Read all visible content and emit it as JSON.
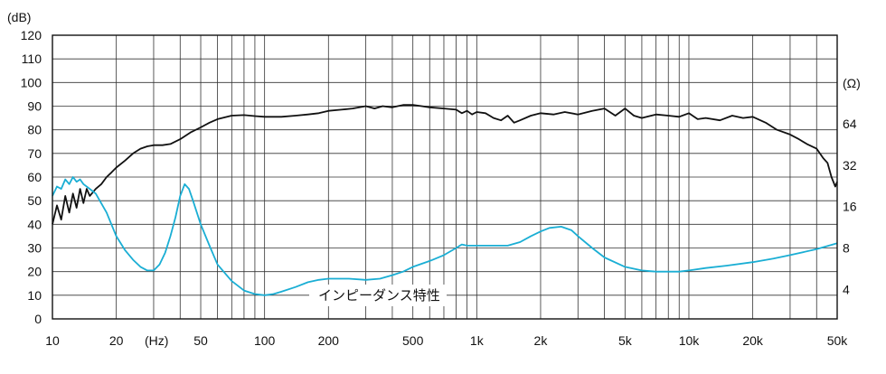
{
  "chart_data": {
    "type": "line",
    "title": "",
    "xscale": "log",
    "xlim": [
      10,
      50000
    ],
    "ylim": [
      0,
      120
    ],
    "ylabel": "(dB)",
    "xunit_label": "(Hz)",
    "y2label": "(Ω)",
    "x_ticks": [
      {
        "value": 10,
        "label": "10"
      },
      {
        "value": 20,
        "label": "20"
      },
      {
        "value": 50,
        "label": "50"
      },
      {
        "value": 100,
        "label": "100"
      },
      {
        "value": 200,
        "label": "200"
      },
      {
        "value": 500,
        "label": "500"
      },
      {
        "value": 1000,
        "label": "1k"
      },
      {
        "value": 2000,
        "label": "2k"
      },
      {
        "value": 5000,
        "label": "5k"
      },
      {
        "value": 10000,
        "label": "10k"
      },
      {
        "value": 20000,
        "label": "20k"
      },
      {
        "value": 50000,
        "label": "50k"
      }
    ],
    "y_ticks": [
      0,
      10,
      20,
      30,
      40,
      50,
      60,
      70,
      80,
      90,
      100,
      110,
      120
    ],
    "y2_ticks": [
      {
        "value": 4,
        "label": "4",
        "at_db": 12.5
      },
      {
        "value": 8,
        "label": "8",
        "at_db": 30
      },
      {
        "value": 16,
        "label": "16",
        "at_db": 47.5
      },
      {
        "value": 32,
        "label": "32",
        "at_db": 65
      },
      {
        "value": 64,
        "label": "64",
        "at_db": 82.5
      }
    ],
    "annotation": "インピーダンス特性",
    "series": [
      {
        "name": "frequency-response",
        "color": "#111111",
        "x": [
          10,
          10.5,
          11,
          11.5,
          12,
          12.5,
          13,
          13.5,
          14,
          14.5,
          15,
          16,
          17,
          18,
          19,
          20,
          22,
          24,
          26,
          28,
          30,
          33,
          36,
          40,
          45,
          50,
          55,
          60,
          70,
          80,
          90,
          100,
          120,
          140,
          160,
          180,
          200,
          230,
          260,
          300,
          330,
          360,
          400,
          450,
          500,
          550,
          600,
          700,
          800,
          850,
          900,
          950,
          1000,
          1100,
          1200,
          1300,
          1400,
          1500,
          1600,
          1800,
          2000,
          2300,
          2600,
          3000,
          3500,
          4000,
          4500,
          5000,
          5500,
          6000,
          7000,
          8000,
          9000,
          10000,
          11000,
          12000,
          14000,
          16000,
          18000,
          20000,
          23000,
          26000,
          30000,
          33000,
          36000,
          40000,
          43000,
          45000,
          47000,
          49000,
          50000
        ],
        "values": [
          40,
          48,
          42,
          52,
          45,
          53,
          47,
          55,
          49,
          55,
          52,
          55,
          57,
          60,
          62,
          64,
          67,
          70,
          72,
          73,
          73.5,
          73.5,
          74,
          76,
          79,
          81,
          83,
          84.5,
          86,
          86.2,
          85.8,
          85.5,
          85.5,
          86,
          86.5,
          87,
          88,
          88.5,
          89,
          90,
          89,
          90,
          89.5,
          90.5,
          90.5,
          90,
          89.5,
          89,
          88.5,
          87,
          88,
          86.5,
          87.5,
          87,
          85,
          84,
          86,
          83,
          84,
          86,
          87,
          86.5,
          87.5,
          86.5,
          88,
          89,
          86,
          89,
          86,
          85,
          86.5,
          86,
          85.5,
          87,
          84.5,
          85,
          84,
          86,
          85,
          85.5,
          83,
          80,
          78,
          76,
          74,
          72,
          68,
          66,
          60,
          56,
          58
        ]
      },
      {
        "name": "impedance",
        "color": "#1aaed4",
        "x": [
          10,
          10.5,
          11,
          11.5,
          12,
          12.5,
          13,
          13.5,
          14,
          15,
          16,
          18,
          20,
          22,
          24,
          26,
          28,
          30,
          32,
          34,
          36,
          38,
          40,
          42,
          44,
          46,
          50,
          55,
          60,
          70,
          80,
          90,
          100,
          110,
          120,
          140,
          160,
          180,
          200,
          250,
          300,
          350,
          400,
          450,
          500,
          600,
          700,
          800,
          850,
          900,
          1000,
          1200,
          1400,
          1600,
          1800,
          2000,
          2200,
          2500,
          2800,
          3000,
          3500,
          4000,
          5000,
          6000,
          7000,
          8000,
          9000,
          10000,
          12000,
          15000,
          20000,
          25000,
          30000,
          40000,
          50000
        ],
        "values": [
          52,
          56,
          55,
          59,
          57,
          60,
          58,
          59,
          57,
          55,
          53,
          45,
          35,
          29,
          25,
          22,
          20.5,
          20.5,
          23,
          28,
          35,
          43,
          52,
          57,
          55,
          50,
          40,
          31,
          23,
          16,
          12,
          10.5,
          10,
          10.5,
          11.5,
          13.5,
          15.5,
          16.5,
          17,
          17,
          16.5,
          17,
          18.5,
          20,
          22,
          24.5,
          27,
          30,
          31.5,
          31,
          31,
          31,
          31,
          32.5,
          35,
          37,
          38.5,
          39,
          37.5,
          35,
          30,
          26,
          22,
          20.5,
          20,
          20,
          20,
          20.5,
          21.5,
          22.5,
          24,
          25.5,
          27,
          29.5,
          32
        ]
      }
    ]
  }
}
